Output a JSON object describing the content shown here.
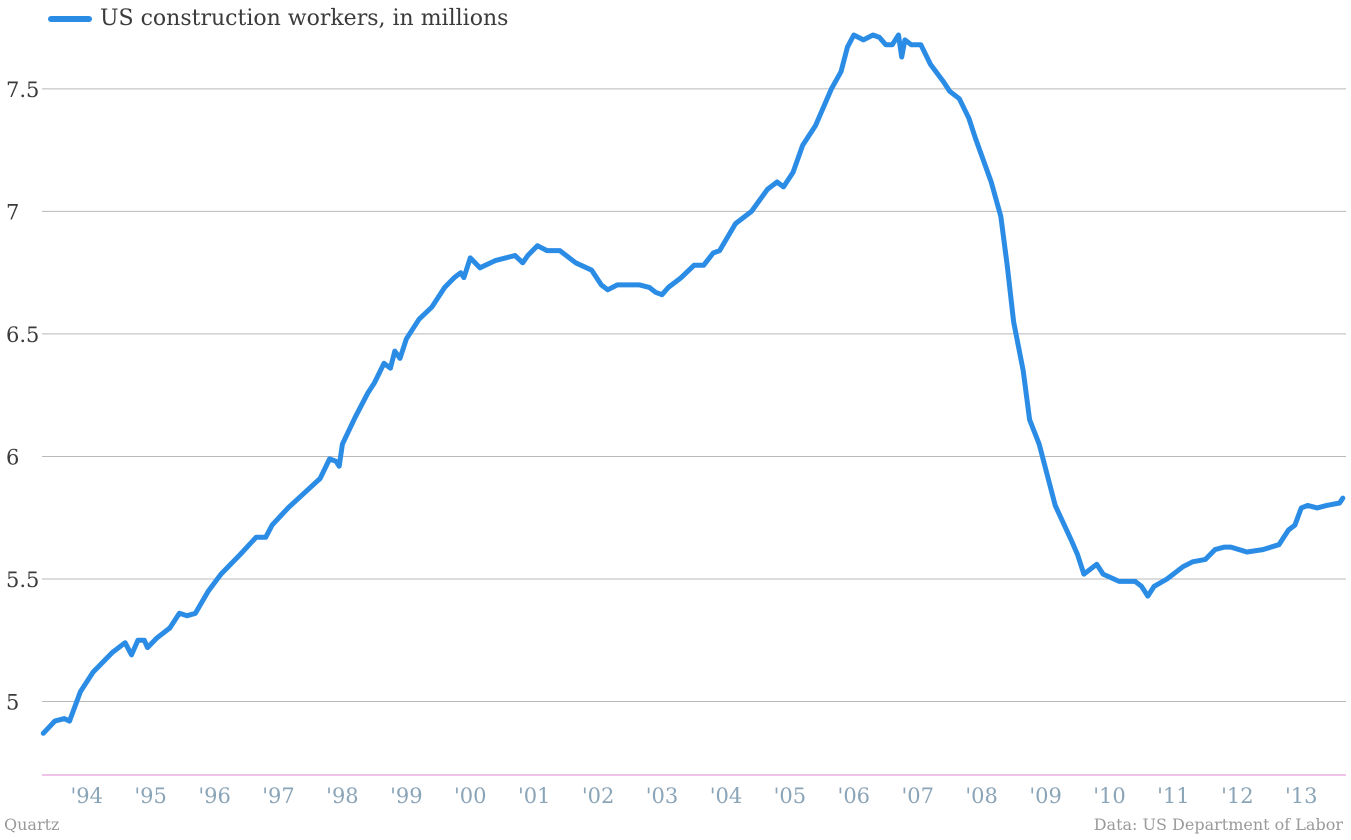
{
  "chart_data": {
    "type": "line",
    "series": [
      {
        "name": "US construction workers, in millions",
        "color": "#2b8ce6",
        "points": [
          [
            1993.42,
            4.87
          ],
          [
            1993.6,
            4.92
          ],
          [
            1993.75,
            4.93
          ],
          [
            1993.83,
            4.92
          ],
          [
            1994.0,
            5.04
          ],
          [
            1994.2,
            5.12
          ],
          [
            1994.5,
            5.2
          ],
          [
            1994.7,
            5.24
          ],
          [
            1994.8,
            5.19
          ],
          [
            1994.9,
            5.25
          ],
          [
            1995.0,
            5.25
          ],
          [
            1995.05,
            5.22
          ],
          [
            1995.2,
            5.26
          ],
          [
            1995.4,
            5.3
          ],
          [
            1995.55,
            5.36
          ],
          [
            1995.67,
            5.35
          ],
          [
            1995.8,
            5.36
          ],
          [
            1996.0,
            5.45
          ],
          [
            1996.2,
            5.52
          ],
          [
            1996.5,
            5.6
          ],
          [
            1996.75,
            5.67
          ],
          [
            1996.9,
            5.67
          ],
          [
            1997.0,
            5.72
          ],
          [
            1997.25,
            5.79
          ],
          [
            1997.5,
            5.85
          ],
          [
            1997.75,
            5.91
          ],
          [
            1997.9,
            5.99
          ],
          [
            1998.0,
            5.98
          ],
          [
            1998.05,
            5.96
          ],
          [
            1998.1,
            6.05
          ],
          [
            1998.3,
            6.16
          ],
          [
            1998.5,
            6.26
          ],
          [
            1998.6,
            6.3
          ],
          [
            1998.75,
            6.38
          ],
          [
            1998.85,
            6.36
          ],
          [
            1998.92,
            6.43
          ],
          [
            1999.0,
            6.4
          ],
          [
            1999.1,
            6.48
          ],
          [
            1999.3,
            6.56
          ],
          [
            1999.5,
            6.61
          ],
          [
            1999.7,
            6.69
          ],
          [
            1999.85,
            6.73
          ],
          [
            1999.95,
            6.75
          ],
          [
            2000.0,
            6.73
          ],
          [
            2000.1,
            6.81
          ],
          [
            2000.25,
            6.77
          ],
          [
            2000.5,
            6.8
          ],
          [
            2000.8,
            6.82
          ],
          [
            2000.92,
            6.79
          ],
          [
            2001.0,
            6.82
          ],
          [
            2001.15,
            6.86
          ],
          [
            2001.3,
            6.84
          ],
          [
            2001.5,
            6.84
          ],
          [
            2001.75,
            6.79
          ],
          [
            2002.0,
            6.76
          ],
          [
            2002.15,
            6.7
          ],
          [
            2002.25,
            6.68
          ],
          [
            2002.4,
            6.7
          ],
          [
            2002.6,
            6.7
          ],
          [
            2002.75,
            6.7
          ],
          [
            2002.9,
            6.69
          ],
          [
            2003.0,
            6.67
          ],
          [
            2003.1,
            6.66
          ],
          [
            2003.2,
            6.69
          ],
          [
            2003.4,
            6.73
          ],
          [
            2003.6,
            6.78
          ],
          [
            2003.75,
            6.78
          ],
          [
            2003.9,
            6.83
          ],
          [
            2004.0,
            6.84
          ],
          [
            2004.25,
            6.95
          ],
          [
            2004.5,
            7.0
          ],
          [
            2004.75,
            7.09
          ],
          [
            2004.9,
            7.12
          ],
          [
            2005.0,
            7.1
          ],
          [
            2005.15,
            7.16
          ],
          [
            2005.3,
            7.27
          ],
          [
            2005.5,
            7.35
          ],
          [
            2005.75,
            7.5
          ],
          [
            2005.9,
            7.57
          ],
          [
            2006.0,
            7.67
          ],
          [
            2006.1,
            7.72
          ],
          [
            2006.25,
            7.7
          ],
          [
            2006.4,
            7.72
          ],
          [
            2006.5,
            7.71
          ],
          [
            2006.6,
            7.68
          ],
          [
            2006.7,
            7.68
          ],
          [
            2006.8,
            7.72
          ],
          [
            2006.85,
            7.63
          ],
          [
            2006.9,
            7.7
          ],
          [
            2007.0,
            7.68
          ],
          [
            2007.15,
            7.68
          ],
          [
            2007.3,
            7.6
          ],
          [
            2007.5,
            7.53
          ],
          [
            2007.6,
            7.49
          ],
          [
            2007.75,
            7.46
          ],
          [
            2007.9,
            7.38
          ],
          [
            2008.0,
            7.3
          ],
          [
            2008.25,
            7.12
          ],
          [
            2008.4,
            6.98
          ],
          [
            2008.5,
            6.78
          ],
          [
            2008.6,
            6.55
          ],
          [
            2008.75,
            6.35
          ],
          [
            2008.85,
            6.15
          ],
          [
            2009.0,
            6.05
          ],
          [
            2009.25,
            5.8
          ],
          [
            2009.5,
            5.66
          ],
          [
            2009.6,
            5.6
          ],
          [
            2009.7,
            5.52
          ],
          [
            2009.9,
            5.56
          ],
          [
            2010.0,
            5.52
          ],
          [
            2010.25,
            5.49
          ],
          [
            2010.5,
            5.49
          ],
          [
            2010.6,
            5.47
          ],
          [
            2010.7,
            5.43
          ],
          [
            2010.8,
            5.47
          ],
          [
            2011.0,
            5.5
          ],
          [
            2011.25,
            5.55
          ],
          [
            2011.4,
            5.57
          ],
          [
            2011.6,
            5.58
          ],
          [
            2011.75,
            5.62
          ],
          [
            2011.9,
            5.63
          ],
          [
            2012.0,
            5.63
          ],
          [
            2012.25,
            5.61
          ],
          [
            2012.5,
            5.62
          ],
          [
            2012.75,
            5.64
          ],
          [
            2012.9,
            5.7
          ],
          [
            2013.0,
            5.72
          ],
          [
            2013.1,
            5.79
          ],
          [
            2013.2,
            5.8
          ],
          [
            2013.35,
            5.79
          ],
          [
            2013.5,
            5.8
          ],
          [
            2013.7,
            5.81
          ],
          [
            2013.75,
            5.83
          ]
        ]
      }
    ],
    "xlabel": "",
    "ylabel": "",
    "ylim": [
      4.7,
      7.83
    ],
    "xlim": [
      1993.4,
      2013.8
    ],
    "y_ticks": [
      5,
      5.5,
      6,
      6.5,
      7,
      7.5
    ],
    "y_tick_labels": [
      "5",
      "5.5",
      "6",
      "6.5",
      "7",
      "7.5"
    ],
    "x_ticks": [
      1994.1,
      1995.1,
      1996.1,
      1997.1,
      1998.1,
      1999.1,
      2000.1,
      2001.1,
      2002.1,
      2003.1,
      2004.1,
      2005.1,
      2006.1,
      2007.1,
      2008.1,
      2009.1,
      2010.1,
      2011.1,
      2012.1,
      2013.1
    ],
    "x_tick_labels": [
      "'94",
      "'95",
      "'96",
      "'97",
      "'98",
      "'99",
      "'00",
      "'01",
      "'02",
      "'03",
      "'04",
      "'05",
      "'06",
      "'07",
      "'08",
      "'09",
      "'10",
      "'11",
      "'12",
      "'13"
    ],
    "grid": true,
    "legend_position": "top-left"
  },
  "footer": {
    "source_left": "Quartz",
    "source_right": "Data: US Department of Labor"
  },
  "colors": {
    "line": "#2b8ce6",
    "grid": "#b9b9b9",
    "baseline": "#e08ad0",
    "y_tick_text": "#3b3b3b",
    "x_tick_text": "#8aa4b8"
  }
}
